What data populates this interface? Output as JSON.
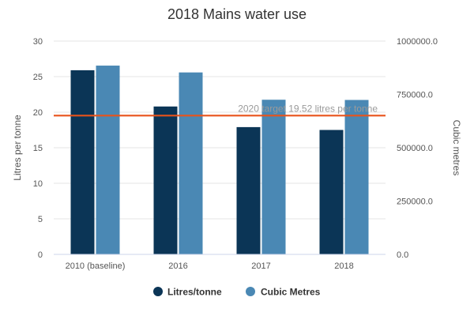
{
  "chart_data": {
    "type": "bar",
    "title": "2018 Mains water use",
    "categories": [
      "2010 (baseline)",
      "2016",
      "2017",
      "2018"
    ],
    "series": [
      {
        "name": "Litres/tonne",
        "axis": "left",
        "color": "#0b3556",
        "values": [
          25.9,
          20.8,
          17.9,
          17.5
        ]
      },
      {
        "name": "Cubic Metres",
        "axis": "right",
        "color": "#4a88b4",
        "values": [
          885000,
          853000,
          725000,
          724000
        ]
      }
    ],
    "y_left": {
      "label": "Litres per tonne",
      "range": [
        0,
        30
      ],
      "ticks": [
        "0",
        "5",
        "10",
        "15",
        "20",
        "25",
        "30"
      ],
      "tick_values": [
        0,
        5,
        10,
        15,
        20,
        25,
        30
      ]
    },
    "y_right": {
      "label": "Cubic metres",
      "range": [
        0,
        1000000
      ],
      "ticks": [
        "0.0",
        "250000.0",
        "500000.0",
        "750000.0",
        "1000000.0"
      ],
      "tick_values": [
        0,
        250000,
        500000,
        750000,
        1000000
      ]
    },
    "target_line": {
      "value": 19.52,
      "label": "2020 target 19.52 litres per tonne",
      "color": "#e8531b"
    },
    "legend_position": "bottom-center",
    "grid": true
  }
}
